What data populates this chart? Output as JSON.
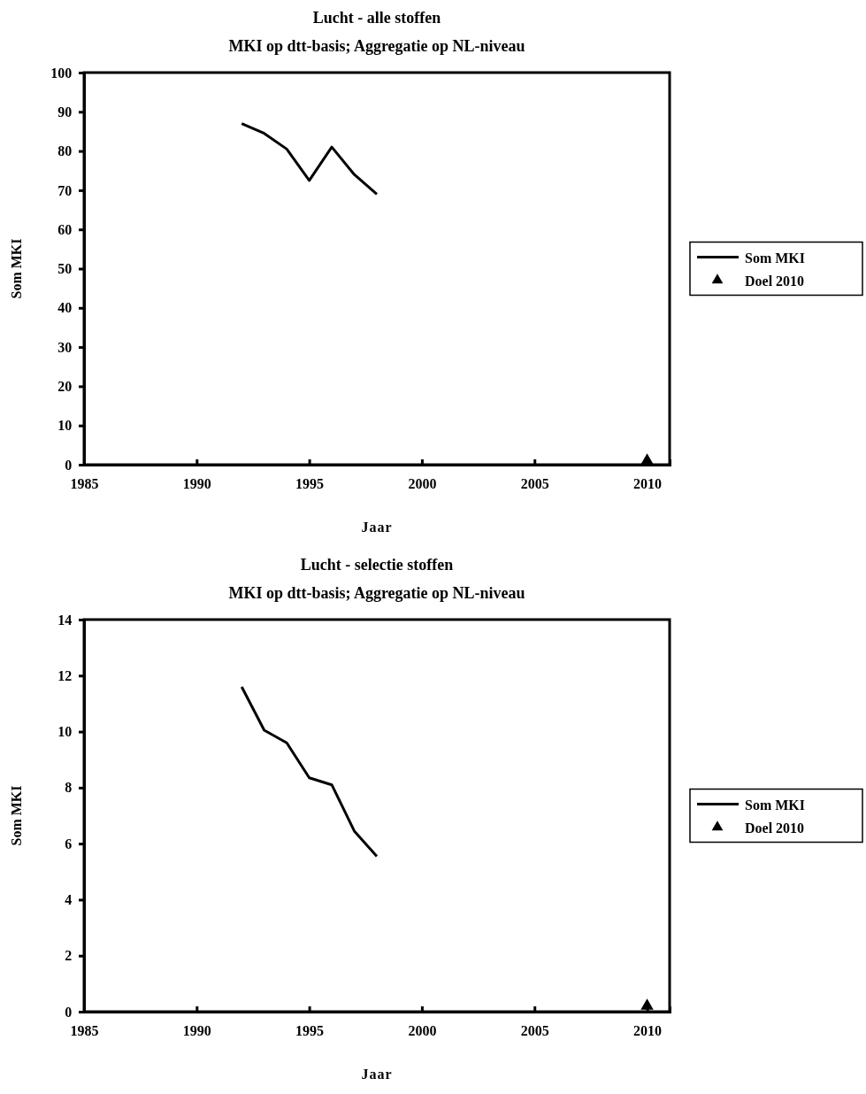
{
  "chart_data": [
    {
      "type": "line",
      "title": "Lucht - alle stoffen",
      "subtitle": "MKI op dtt-basis; Aggregatie op NL-niveau",
      "xlabel": "Jaar",
      "ylabel": "Som MKI",
      "xlim": [
        1985,
        2011
      ],
      "xticks": [
        1985,
        1990,
        1995,
        2000,
        2005,
        2010
      ],
      "ylim": [
        0,
        100
      ],
      "yticks": [
        0,
        10,
        20,
        30,
        40,
        50,
        60,
        70,
        80,
        90,
        100
      ],
      "grid": false,
      "legend": "right",
      "series": [
        {
          "name": "Som MKI",
          "color": "#000000",
          "marker": "none",
          "line_style": "solid",
          "x": [
            1992,
            1993,
            1994,
            1995,
            1996,
            1997,
            1998
          ],
          "values": [
            87,
            84.5,
            80.5,
            72.5,
            81,
            74,
            69
          ]
        },
        {
          "name": "Doel 2010",
          "type": "scatter",
          "color": "#000000",
          "marker": "triangle",
          "x": [
            2010
          ],
          "values": [
            1
          ]
        }
      ]
    },
    {
      "type": "line",
      "title": "Lucht - selectie stoffen",
      "subtitle": "MKI op dtt-basis; Aggregatie op NL-niveau",
      "xlabel": "Jaar",
      "ylabel": "Som MKI",
      "xlim": [
        1985,
        2011
      ],
      "xticks": [
        1985,
        1990,
        1995,
        2000,
        2005,
        2010
      ],
      "ylim": [
        0,
        14
      ],
      "yticks": [
        0,
        2,
        4,
        6,
        8,
        10,
        12,
        14
      ],
      "grid": false,
      "legend": "right",
      "series": [
        {
          "name": "Som MKI",
          "color": "#000000",
          "marker": "none",
          "line_style": "solid",
          "x": [
            1992,
            1993,
            1994,
            1995,
            1996,
            1997,
            1998
          ],
          "values": [
            11.6,
            10.05,
            9.6,
            8.35,
            8.1,
            6.45,
            5.55
          ]
        },
        {
          "name": "Doel 2010",
          "type": "scatter",
          "color": "#000000",
          "marker": "triangle",
          "x": [
            2010
          ],
          "values": [
            0.2
          ]
        }
      ]
    }
  ]
}
